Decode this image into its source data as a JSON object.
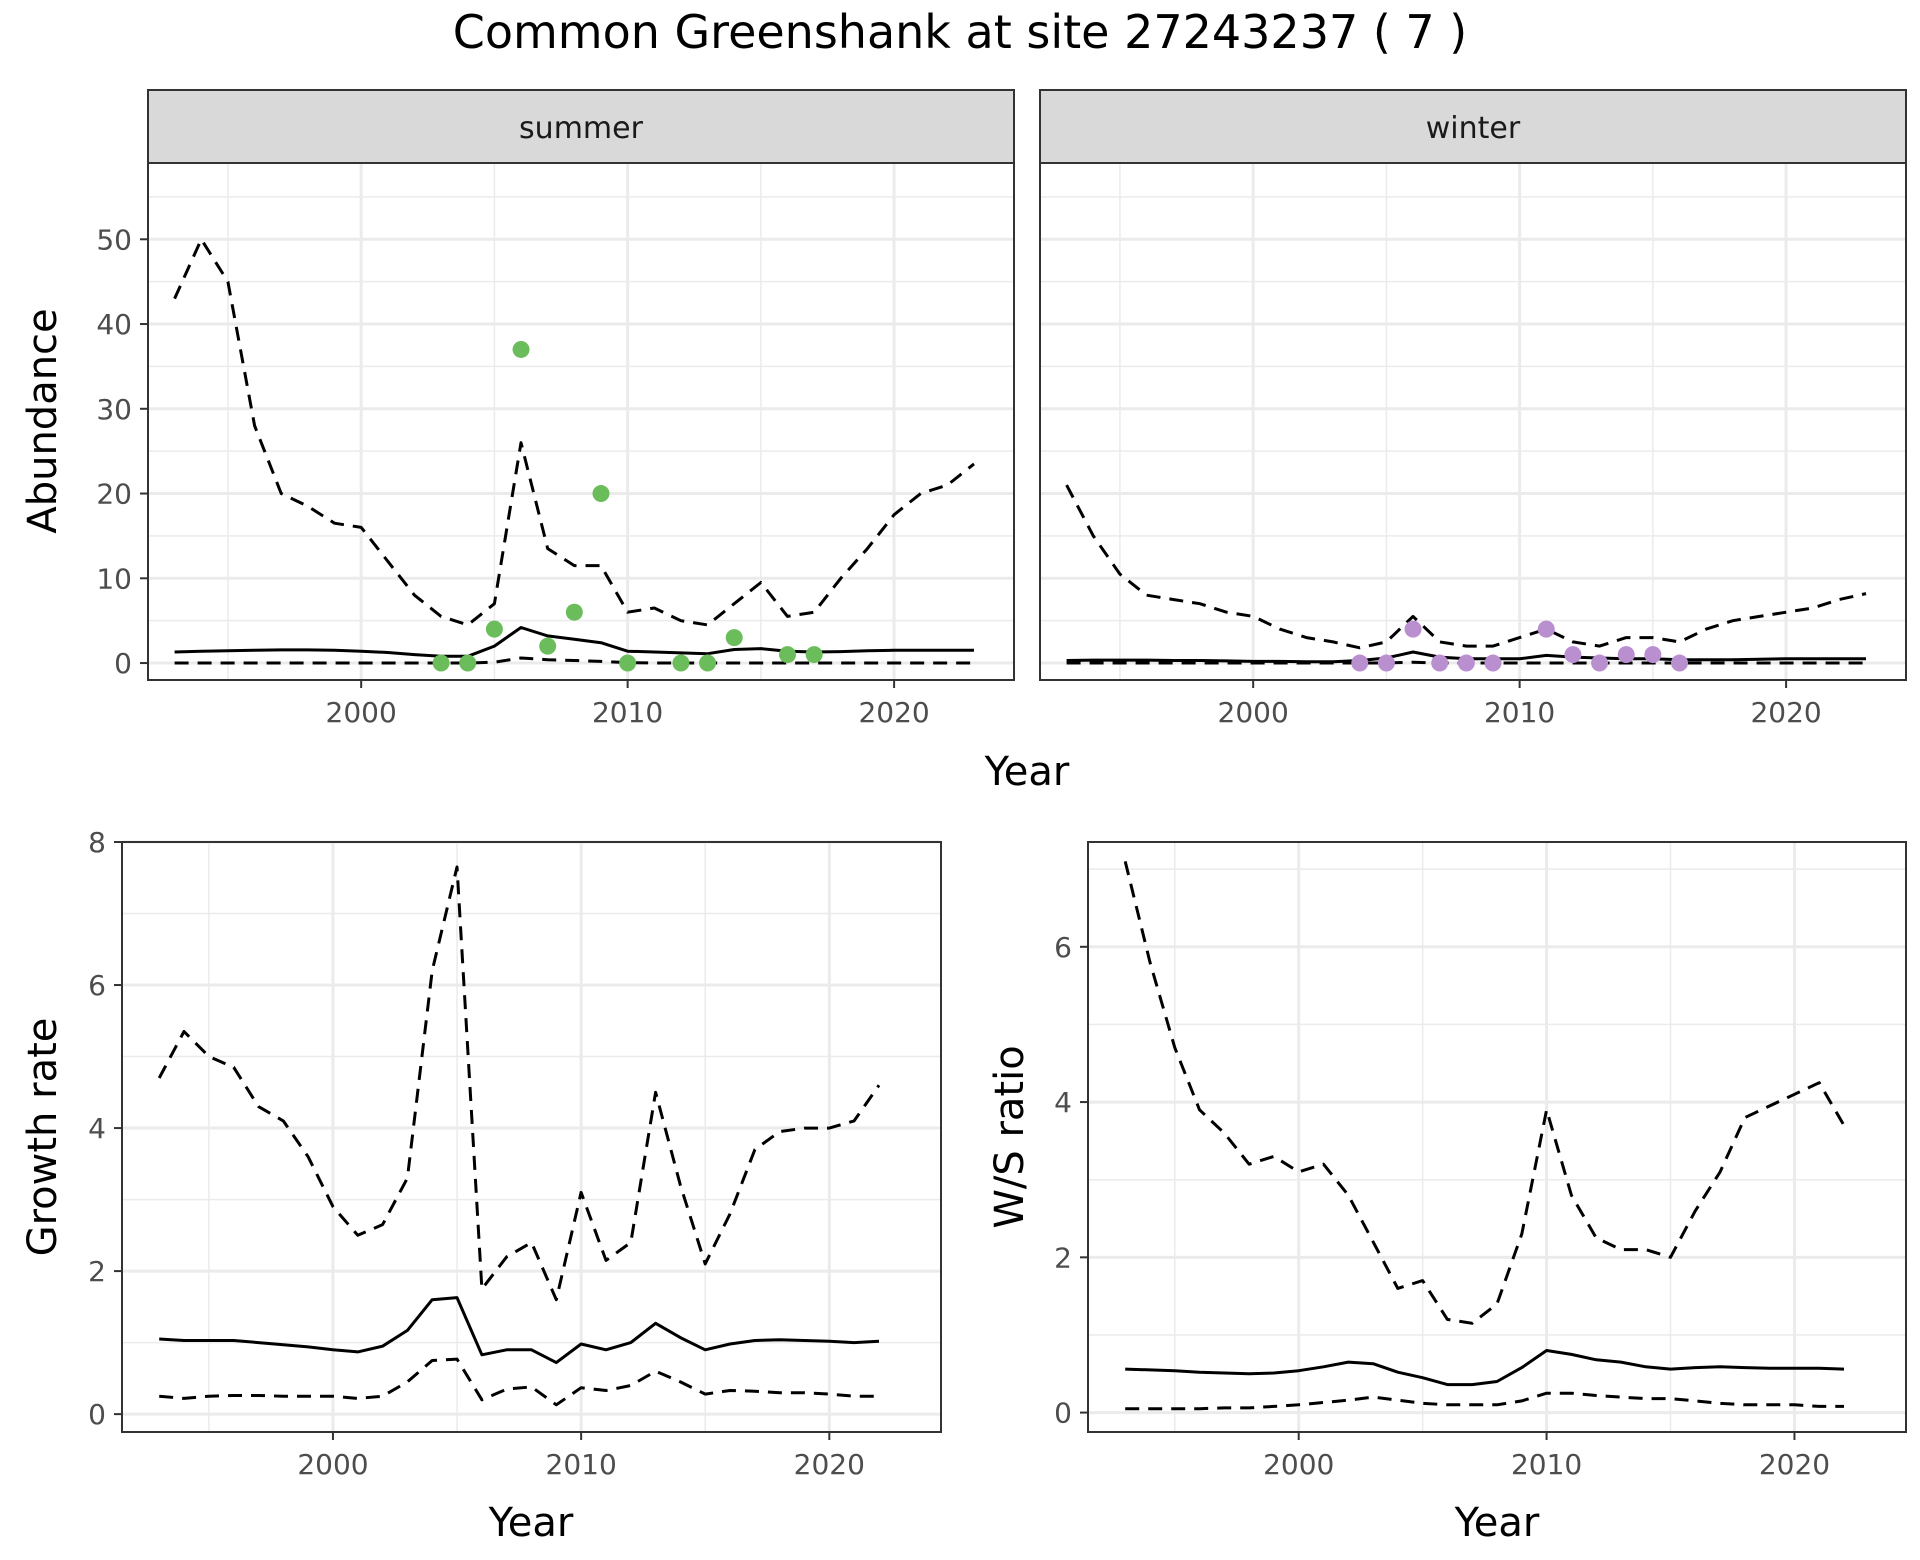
{
  "title": "Common Greenshank at site 27243237 ( 7 )",
  "colors": {
    "summer_points": "#6bbd5b",
    "winter_points": "#b98fd0",
    "lines": "#000000",
    "strip_bg": "#d9d9d9",
    "grid": "#ebebeb"
  },
  "chart_data": [
    {
      "type": "line",
      "facet": "summer",
      "xlabel": "Year",
      "ylabel": "Abundance",
      "xlim": [
        1992,
        2024.5
      ],
      "ylim": [
        -2,
        59
      ],
      "x_ticks": [
        2000,
        2010,
        2020
      ],
      "y_ticks": [
        0,
        10,
        20,
        30,
        40,
        50
      ],
      "grid": true,
      "series": [
        {
          "role": "estimate",
          "style": "solid",
          "x": [
            1993,
            1994,
            1995,
            1996,
            1997,
            1998,
            1999,
            2000,
            2001,
            2002,
            2003,
            2004,
            2005,
            2006,
            2007,
            2008,
            2009,
            2010,
            2011,
            2012,
            2013,
            2014,
            2015,
            2016,
            2017,
            2018,
            2019,
            2020,
            2021,
            2022,
            2023
          ],
          "y": [
            1.3,
            1.4,
            1.45,
            1.5,
            1.55,
            1.55,
            1.5,
            1.4,
            1.25,
            1.0,
            0.8,
            0.8,
            2.0,
            4.2,
            3.2,
            2.8,
            2.4,
            1.4,
            1.3,
            1.2,
            1.1,
            1.6,
            1.7,
            1.4,
            1.3,
            1.35,
            1.45,
            1.5,
            1.5,
            1.5,
            1.5
          ]
        },
        {
          "role": "upper",
          "style": "dashed",
          "x": [
            1993,
            1994,
            1995,
            1996,
            1997,
            1998,
            1999,
            2000,
            2001,
            2002,
            2003,
            2004,
            2005,
            2006,
            2007,
            2008,
            2009,
            2010,
            2011,
            2012,
            2013,
            2014,
            2015,
            2016,
            2017,
            2018,
            2019,
            2020,
            2021,
            2022,
            2023
          ],
          "y": [
            43,
            50,
            45,
            28,
            20,
            18.5,
            16.5,
            16,
            12,
            8,
            5.5,
            4.5,
            7,
            26,
            13.5,
            11.5,
            11.5,
            6,
            6.5,
            5,
            4.5,
            7,
            9.5,
            5.5,
            6,
            10,
            13.5,
            17.5,
            20,
            21,
            23.5
          ]
        },
        {
          "role": "lower",
          "style": "dashed",
          "x": [
            1993,
            1994,
            1995,
            1996,
            1997,
            1998,
            1999,
            2000,
            2001,
            2002,
            2003,
            2004,
            2005,
            2006,
            2007,
            2008,
            2009,
            2010,
            2011,
            2012,
            2013,
            2014,
            2015,
            2016,
            2017,
            2018,
            2019,
            2020,
            2021,
            2022,
            2023
          ],
          "y": [
            0,
            0,
            0,
            0,
            0,
            0,
            0,
            0,
            0,
            0,
            0,
            0,
            0.1,
            0.6,
            0.4,
            0.3,
            0.2,
            0.05,
            0,
            0,
            0,
            0,
            0,
            0,
            0,
            0,
            0,
            0,
            0,
            0,
            0
          ]
        }
      ],
      "points": {
        "x": [
          2003,
          2004,
          2005,
          2006,
          2007,
          2008,
          2009,
          2010,
          2012,
          2013,
          2014,
          2016,
          2017
        ],
        "y": [
          0,
          0,
          4,
          37,
          2,
          6,
          20,
          0,
          0,
          0,
          3,
          1,
          1
        ]
      }
    },
    {
      "type": "line",
      "facet": "winter",
      "xlabel": "Year",
      "ylabel": "Abundance",
      "xlim": [
        1992,
        2024.5
      ],
      "ylim": [
        -2,
        59
      ],
      "x_ticks": [
        2000,
        2010,
        2020
      ],
      "y_ticks": [
        0,
        10,
        20,
        30,
        40,
        50
      ],
      "grid": true,
      "series": [
        {
          "role": "estimate",
          "style": "solid",
          "x": [
            1993,
            1994,
            1995,
            1996,
            1997,
            1998,
            1999,
            2000,
            2001,
            2002,
            2003,
            2004,
            2005,
            2006,
            2007,
            2008,
            2009,
            2010,
            2011,
            2012,
            2013,
            2014,
            2015,
            2016,
            2017,
            2018,
            2019,
            2020,
            2021,
            2022,
            2023
          ],
          "y": [
            0.3,
            0.35,
            0.35,
            0.35,
            0.3,
            0.3,
            0.25,
            0.2,
            0.2,
            0.15,
            0.15,
            0.3,
            0.6,
            1.3,
            0.7,
            0.5,
            0.5,
            0.5,
            0.9,
            0.7,
            0.6,
            0.5,
            0.5,
            0.4,
            0.4,
            0.4,
            0.45,
            0.5,
            0.5,
            0.5,
            0.5
          ]
        },
        {
          "role": "upper",
          "style": "dashed",
          "x": [
            1993,
            1994,
            1995,
            1996,
            1997,
            1998,
            1999,
            2000,
            2001,
            2002,
            2003,
            2004,
            2005,
            2006,
            2007,
            2008,
            2009,
            2010,
            2011,
            2012,
            2013,
            2014,
            2015,
            2016,
            2017,
            2018,
            2019,
            2020,
            2021,
            2022,
            2023
          ],
          "y": [
            21,
            15,
            10.5,
            8,
            7.5,
            7,
            6,
            5.5,
            4,
            3,
            2.5,
            1.8,
            2.5,
            5.5,
            2.5,
            2,
            2,
            3,
            4,
            2.5,
            2,
            3,
            3,
            2.5,
            4,
            5,
            5.5,
            6,
            6.5,
            7.5,
            8.2
          ]
        },
        {
          "role": "lower",
          "style": "dashed",
          "x": [
            1993,
            1994,
            1995,
            1996,
            1997,
            1998,
            1999,
            2000,
            2001,
            2002,
            2003,
            2004,
            2005,
            2006,
            2007,
            2008,
            2009,
            2010,
            2011,
            2012,
            2013,
            2014,
            2015,
            2016,
            2017,
            2018,
            2019,
            2020,
            2021,
            2022,
            2023
          ],
          "y": [
            0,
            0,
            0,
            0,
            0,
            0,
            0,
            0,
            0,
            0,
            0,
            0,
            0,
            0.1,
            0,
            0,
            0,
            0,
            0,
            0,
            0,
            0,
            0,
            0,
            0,
            0,
            0,
            0,
            0,
            0,
            0
          ]
        }
      ],
      "points": {
        "x": [
          2004,
          2005,
          2006,
          2007,
          2008,
          2009,
          2011,
          2012,
          2013,
          2014,
          2015,
          2016
        ],
        "y": [
          0,
          0,
          4,
          0,
          0,
          0,
          4,
          1,
          0,
          1,
          1,
          0
        ]
      }
    },
    {
      "type": "line",
      "xlabel": "Year",
      "ylabel": "Growth rate",
      "xlim": [
        1991.5,
        2024.5
      ],
      "ylim": [
        -0.25,
        8
      ],
      "x_ticks": [
        2000,
        2010,
        2020
      ],
      "y_ticks": [
        0,
        2,
        4,
        6,
        8
      ],
      "grid": true,
      "series": [
        {
          "role": "estimate",
          "style": "solid",
          "x": [
            1993,
            1994,
            1995,
            1996,
            1997,
            1998,
            1999,
            2000,
            2001,
            2002,
            2003,
            2004,
            2005,
            2006,
            2007,
            2008,
            2009,
            2010,
            2011,
            2012,
            2013,
            2014,
            2015,
            2016,
            2017,
            2018,
            2019,
            2020,
            2021,
            2022
          ],
          "y": [
            1.05,
            1.03,
            1.03,
            1.03,
            1.0,
            0.97,
            0.94,
            0.9,
            0.87,
            0.95,
            1.17,
            1.6,
            1.63,
            0.83,
            0.9,
            0.9,
            0.72,
            0.98,
            0.9,
            1.0,
            1.27,
            1.07,
            0.9,
            0.98,
            1.03,
            1.04,
            1.03,
            1.02,
            1.0,
            1.02
          ]
        },
        {
          "role": "upper",
          "style": "dashed",
          "x": [
            1993,
            1994,
            1995,
            1996,
            1997,
            1998,
            1999,
            2000,
            2001,
            2002,
            2003,
            2004,
            2005,
            2006,
            2007,
            2008,
            2009,
            2010,
            2011,
            2012,
            2013,
            2014,
            2015,
            2016,
            2017,
            2018,
            2019,
            2020,
            2021,
            2022
          ],
          "y": [
            4.7,
            5.35,
            5.0,
            4.85,
            4.3,
            4.1,
            3.6,
            2.9,
            2.5,
            2.65,
            3.3,
            6.2,
            7.65,
            1.75,
            2.2,
            2.4,
            1.6,
            3.1,
            2.15,
            2.4,
            4.5,
            3.2,
            2.1,
            2.8,
            3.7,
            3.95,
            4.0,
            4.0,
            4.1,
            4.6
          ]
        },
        {
          "role": "lower",
          "style": "dashed",
          "x": [
            1993,
            1994,
            1995,
            1996,
            1997,
            1998,
            1999,
            2000,
            2001,
            2002,
            2003,
            2004,
            2005,
            2006,
            2007,
            2008,
            2009,
            2010,
            2011,
            2012,
            2013,
            2014,
            2015,
            2016,
            2017,
            2018,
            2019,
            2020,
            2021,
            2022
          ],
          "y": [
            0.25,
            0.22,
            0.25,
            0.26,
            0.26,
            0.25,
            0.25,
            0.25,
            0.22,
            0.25,
            0.45,
            0.75,
            0.77,
            0.2,
            0.35,
            0.38,
            0.13,
            0.37,
            0.33,
            0.4,
            0.6,
            0.45,
            0.28,
            0.33,
            0.32,
            0.3,
            0.3,
            0.28,
            0.25,
            0.25
          ]
        }
      ]
    },
    {
      "type": "line",
      "xlabel": "Year",
      "ylabel": "W/S ratio",
      "xlim": [
        1991.5,
        2024.5
      ],
      "ylim": [
        -0.25,
        7.35
      ],
      "x_ticks": [
        2000,
        2010,
        2020
      ],
      "y_ticks": [
        0,
        2,
        4,
        6
      ],
      "grid": true,
      "series": [
        {
          "role": "estimate",
          "style": "solid",
          "x": [
            1993,
            1994,
            1995,
            1996,
            1997,
            1998,
            1999,
            2000,
            2001,
            2002,
            2003,
            2004,
            2005,
            2006,
            2007,
            2008,
            2009,
            2010,
            2011,
            2012,
            2013,
            2014,
            2015,
            2016,
            2017,
            2018,
            2019,
            2020,
            2021,
            2022
          ],
          "y": [
            0.56,
            0.55,
            0.54,
            0.52,
            0.51,
            0.5,
            0.51,
            0.54,
            0.59,
            0.65,
            0.63,
            0.52,
            0.45,
            0.36,
            0.36,
            0.4,
            0.58,
            0.8,
            0.75,
            0.68,
            0.65,
            0.59,
            0.56,
            0.58,
            0.59,
            0.58,
            0.57,
            0.57,
            0.57,
            0.56
          ]
        },
        {
          "role": "upper",
          "style": "dashed",
          "x": [
            1993,
            1994,
            1995,
            1996,
            1997,
            1998,
            1999,
            2000,
            2001,
            2002,
            2003,
            2004,
            2005,
            2006,
            2007,
            2008,
            2009,
            2010,
            2011,
            2012,
            2013,
            2014,
            2015,
            2016,
            2017,
            2018,
            2019,
            2020,
            2021,
            2022
          ],
          "y": [
            7.1,
            5.8,
            4.7,
            3.9,
            3.6,
            3.2,
            3.3,
            3.1,
            3.2,
            2.8,
            2.2,
            1.6,
            1.7,
            1.2,
            1.15,
            1.4,
            2.3,
            3.9,
            2.8,
            2.25,
            2.1,
            2.1,
            2.0,
            2.6,
            3.1,
            3.8,
            3.95,
            4.1,
            4.25,
            3.7
          ]
        },
        {
          "role": "lower",
          "style": "dashed",
          "x": [
            1993,
            1994,
            1995,
            1996,
            1997,
            1998,
            1999,
            2000,
            2001,
            2002,
            2003,
            2004,
            2005,
            2006,
            2007,
            2008,
            2009,
            2010,
            2011,
            2012,
            2013,
            2014,
            2015,
            2016,
            2017,
            2018,
            2019,
            2020,
            2021,
            2022
          ],
          "y": [
            0.05,
            0.05,
            0.05,
            0.05,
            0.06,
            0.06,
            0.08,
            0.1,
            0.13,
            0.16,
            0.2,
            0.16,
            0.12,
            0.1,
            0.1,
            0.1,
            0.15,
            0.25,
            0.25,
            0.22,
            0.2,
            0.18,
            0.18,
            0.15,
            0.12,
            0.1,
            0.1,
            0.1,
            0.08,
            0.08
          ]
        }
      ]
    }
  ]
}
